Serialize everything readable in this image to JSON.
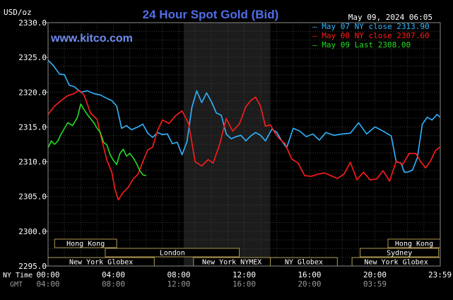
{
  "header": {
    "units": "USD/oz",
    "title": "24 Hour Spot Gold (Bid)",
    "timestamp": "May 09, 2024 06:05",
    "brand": "www.kitco.com"
  },
  "axis": {
    "nytime_label": "NY Time",
    "gmt_label": "GMT"
  },
  "colors": {
    "background": "#000000",
    "grid": "#3a3a3a",
    "frame": "#8a8a8a",
    "shaded": "#1c1c1c",
    "title": "#4f6ee8",
    "brand": "#6f8cf0",
    "band_border": "#b09a50",
    "band_text": "#ffffff",
    "tick_text": "#ffffff",
    "gmt_text": "#9a9a9a"
  },
  "chart_data": {
    "type": "line",
    "title": "24 Hour Spot Gold (Bid)",
    "ylabel": "USD/oz",
    "ylim": [
      2295,
      2330
    ],
    "xlim": [
      0,
      24
    ],
    "grid": true,
    "legend_position": "top-right",
    "y_ticks": [
      "2295.0",
      "2300.0",
      "2305.0",
      "2310.0",
      "2315.0",
      "2320.0",
      "2325.0",
      "2330.0"
    ],
    "x_ticks_ny": [
      "00:00",
      "04:00",
      "08:00",
      "12:00",
      "16:00",
      "20:00",
      "23:59"
    ],
    "x_ticks_gmt": [
      "04:00",
      "08:00",
      "12:00",
      "16:00",
      "20:00",
      "03:59"
    ],
    "shaded_session": [
      8.3,
      13.6
    ],
    "markets": [
      {
        "name": "Hong Kong",
        "start": 0.4,
        "end": 4.2,
        "row": 1
      },
      {
        "name": "London",
        "start": 3.5,
        "end": 11.7,
        "row": 2
      },
      {
        "name": "New York Globex",
        "start": 0.0,
        "end": 6.5,
        "row": 3
      },
      {
        "name": "New York NYMEX",
        "start": 8.9,
        "end": 13.6,
        "row": 3
      },
      {
        "name": "NY Globex",
        "start": 13.6,
        "end": 17.7,
        "row": 3
      },
      {
        "name": "Hong Kong",
        "start": 20.8,
        "end": 24.0,
        "row": 1
      },
      {
        "name": "Sydney",
        "start": 19.1,
        "end": 23.9,
        "row": 2
      },
      {
        "name": "New York Globex",
        "start": 18.6,
        "end": 24.0,
        "row": 3
      }
    ],
    "series": [
      {
        "name": "May 07 NY close 2313.90",
        "color": "#2fb4ff",
        "x": [
          0.0,
          0.3,
          0.7,
          1.0,
          1.3,
          1.6,
          2.0,
          2.4,
          2.8,
          3.2,
          3.6,
          3.9,
          4.2,
          4.5,
          4.8,
          5.1,
          5.5,
          5.8,
          6.1,
          6.4,
          6.7,
          7.0,
          7.3,
          7.6,
          7.9,
          8.2,
          8.5,
          8.8,
          9.1,
          9.4,
          9.7,
          10.0,
          10.3,
          10.6,
          10.9,
          11.2,
          11.5,
          11.8,
          12.1,
          12.4,
          12.7,
          13.0,
          13.3,
          13.7,
          14.0,
          14.3,
          14.6,
          15.0,
          15.4,
          15.8,
          16.2,
          16.6,
          17.0,
          17.5,
          18.0,
          18.5,
          19.0,
          19.5,
          20.0,
          20.5,
          21.0,
          21.3,
          21.6,
          21.8,
          22.0,
          22.3,
          22.6,
          22.9,
          23.2,
          23.5,
          23.8,
          23.99
        ],
        "y": [
          2324.6,
          2323.9,
          2322.6,
          2322.5,
          2321.0,
          2320.8,
          2320.0,
          2320.2,
          2319.8,
          2319.6,
          2319.1,
          2318.8,
          2318.0,
          2314.8,
          2315.2,
          2314.6,
          2315.0,
          2315.4,
          2314.1,
          2313.5,
          2314.2,
          2313.9,
          2314.0,
          2312.6,
          2312.8,
          2311.0,
          2312.9,
          2317.8,
          2320.2,
          2318.5,
          2319.9,
          2318.6,
          2317.0,
          2316.7,
          2314.0,
          2313.3,
          2313.6,
          2313.8,
          2313.0,
          2313.7,
          2314.2,
          2313.8,
          2313.0,
          2314.7,
          2314.2,
          2313.0,
          2312.0,
          2314.8,
          2314.4,
          2313.6,
          2314.0,
          2313.1,
          2314.2,
          2313.8,
          2314.0,
          2314.1,
          2315.6,
          2314.0,
          2315.0,
          2314.4,
          2313.7,
          2310.0,
          2309.8,
          2308.5,
          2308.5,
          2308.8,
          2310.6,
          2315.4,
          2316.4,
          2316.0,
          2316.8,
          2316.4
        ]
      },
      {
        "name": "May 08 NY close 2307.60",
        "color": "#ff1c1c",
        "x": [
          0.0,
          0.4,
          0.8,
          1.2,
          1.6,
          1.9,
          2.2,
          2.6,
          3.0,
          3.3,
          3.6,
          3.9,
          4.1,
          4.3,
          4.6,
          4.9,
          5.2,
          5.5,
          5.8,
          6.1,
          6.4,
          6.7,
          7.0,
          7.4,
          7.8,
          8.2,
          8.6,
          9.0,
          9.4,
          9.8,
          10.1,
          10.5,
          10.9,
          11.3,
          11.7,
          12.1,
          12.4,
          12.7,
          13.0,
          13.3,
          13.6,
          13.9,
          14.2,
          14.5,
          14.9,
          15.3,
          15.7,
          16.1,
          16.5,
          16.9,
          17.3,
          17.7,
          18.1,
          18.5,
          18.9,
          19.3,
          19.7,
          20.1,
          20.5,
          20.9,
          21.3,
          21.7,
          22.1,
          22.5,
          22.8,
          23.1,
          23.4,
          23.7,
          23.99
        ],
        "y": [
          2316.8,
          2318.0,
          2318.8,
          2319.5,
          2319.8,
          2320.3,
          2319.6,
          2317.0,
          2316.1,
          2313.0,
          2310.2,
          2308.5,
          2306.0,
          2304.5,
          2305.6,
          2306.3,
          2307.5,
          2308.2,
          2310.0,
          2311.7,
          2312.1,
          2314.5,
          2316.0,
          2315.5,
          2316.6,
          2317.3,
          2315.5,
          2310.0,
          2309.4,
          2310.3,
          2309.8,
          2312.5,
          2316.2,
          2314.4,
          2315.4,
          2317.9,
          2318.8,
          2319.3,
          2318.0,
          2315.1,
          2315.3,
          2314.1,
          2313.2,
          2312.6,
          2310.4,
          2309.8,
          2308.0,
          2307.9,
          2308.2,
          2308.4,
          2308.0,
          2307.6,
          2308.2,
          2309.9,
          2307.4,
          2308.5,
          2307.4,
          2307.5,
          2308.7,
          2307.2,
          2310.1,
          2309.6,
          2311.2,
          2311.2,
          2310.0,
          2309.1,
          2310.1,
          2311.6,
          2312.1
        ]
      },
      {
        "name": "May 09 Last 2308.00",
        "color": "#22dd22",
        "x": [
          0.0,
          0.2,
          0.4,
          0.6,
          0.8,
          1.0,
          1.2,
          1.5,
          1.8,
          2.0,
          2.2,
          2.4,
          2.6,
          2.8,
          3.0,
          3.2,
          3.4,
          3.6,
          3.8,
          4.0,
          4.2,
          4.4,
          4.6,
          4.8,
          5.0,
          5.2,
          5.4,
          5.6,
          5.8,
          6.0
        ],
        "y": [
          2312.0,
          2313.0,
          2312.5,
          2313.0,
          2314.0,
          2314.8,
          2315.6,
          2315.2,
          2316.4,
          2318.3,
          2317.5,
          2316.8,
          2316.2,
          2315.6,
          2314.8,
          2314.2,
          2312.8,
          2312.4,
          2311.0,
          2310.2,
          2309.6,
          2311.2,
          2311.8,
          2310.8,
          2311.2,
          2310.6,
          2309.8,
          2308.8,
          2308.1,
          2308.0
        ]
      }
    ]
  }
}
